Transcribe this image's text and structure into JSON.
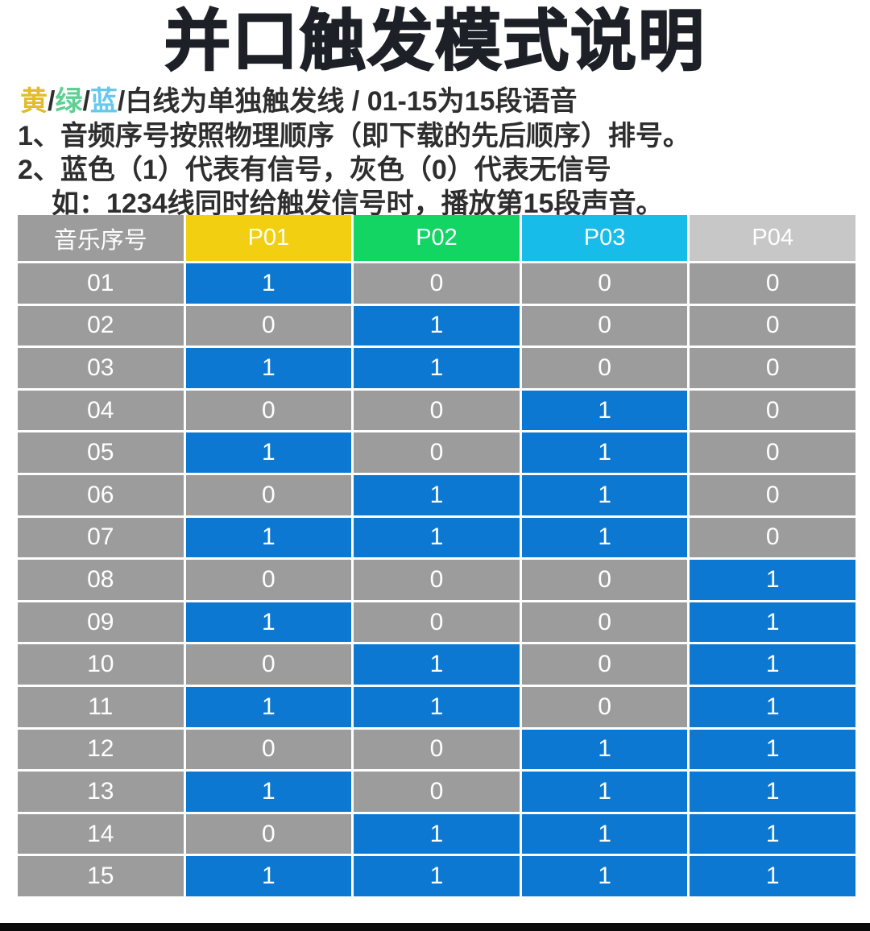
{
  "title": "并口触发模式说明",
  "legend": {
    "parts": [
      {
        "text": "黄",
        "color": "#e0bd2c"
      },
      {
        "text": "/",
        "color": "#2e2e2e"
      },
      {
        "text": "绿",
        "color": "#5ed092"
      },
      {
        "text": "/",
        "color": "#2e2e2e"
      },
      {
        "text": "蓝",
        "color": "#66c8ec"
      },
      {
        "text": "/白线为单独触发线 / 01-15为15段语音",
        "color": "#2e2e2e"
      }
    ]
  },
  "notes": [
    {
      "text": "1、音频序号按照物理顺序（即下载的先后顺序）排号。"
    },
    {
      "text": "2、蓝色（1）代表有信号，灰色（0）代表无信号"
    },
    {
      "text": "如：1234线同时给触发信号时，播放第15段声音。"
    }
  ],
  "table": {
    "row_header_label": "音乐序号",
    "columns": [
      {
        "label": "P01",
        "color": "#f2cf11"
      },
      {
        "label": "P02",
        "color": "#12d563"
      },
      {
        "label": "P03",
        "color": "#17bce9"
      },
      {
        "label": "P04",
        "color": "#c7c7c7"
      }
    ],
    "rows": [
      {
        "id": "01",
        "values": [
          1,
          0,
          0,
          0
        ]
      },
      {
        "id": "02",
        "values": [
          0,
          1,
          0,
          0
        ]
      },
      {
        "id": "03",
        "values": [
          1,
          1,
          0,
          0
        ]
      },
      {
        "id": "04",
        "values": [
          0,
          0,
          1,
          0
        ]
      },
      {
        "id": "05",
        "values": [
          1,
          0,
          1,
          0
        ]
      },
      {
        "id": "06",
        "values": [
          0,
          1,
          1,
          0
        ]
      },
      {
        "id": "07",
        "values": [
          1,
          1,
          1,
          0
        ]
      },
      {
        "id": "08",
        "values": [
          0,
          0,
          0,
          1
        ]
      },
      {
        "id": "09",
        "values": [
          1,
          0,
          0,
          1
        ]
      },
      {
        "id": "10",
        "values": [
          0,
          1,
          0,
          1
        ]
      },
      {
        "id": "11",
        "values": [
          1,
          1,
          0,
          1
        ]
      },
      {
        "id": "12",
        "values": [
          0,
          0,
          1,
          1
        ]
      },
      {
        "id": "13",
        "values": [
          1,
          0,
          1,
          1
        ]
      },
      {
        "id": "14",
        "values": [
          0,
          1,
          1,
          1
        ]
      },
      {
        "id": "15",
        "values": [
          1,
          1,
          1,
          1
        ]
      }
    ],
    "colors": {
      "signal_on": "#0c78d2",
      "signal_off": "#9c9c9c",
      "row_header_bg": "#9c9c9c",
      "header_text": "#ffffff",
      "cell_text": "#ffffff"
    }
  },
  "footer_bar_color": "#0a0a0a"
}
